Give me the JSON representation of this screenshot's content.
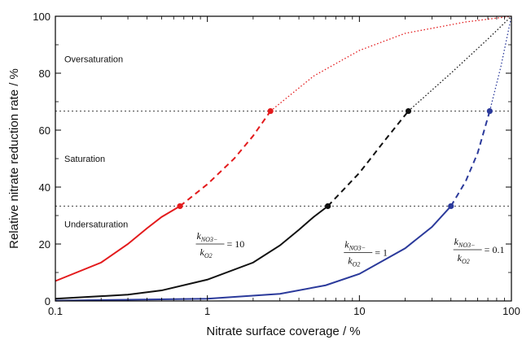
{
  "chart_data": {
    "type": "line",
    "x_scale": "log",
    "xlim": [
      0.1,
      100
    ],
    "ylim": [
      0,
      100
    ],
    "xlabel": "Nitrate surface coverage / %",
    "ylabel": "Relative nitrate reduction rate / %",
    "x_tick_labels": [
      "0.1",
      "1",
      "10",
      "100"
    ],
    "y_tick_labels": [
      "0",
      "20",
      "40",
      "60",
      "80",
      "100"
    ],
    "x_ticks": [
      0.1,
      1,
      10,
      100
    ],
    "y_ticks": [
      0,
      20,
      40,
      60,
      80,
      100
    ],
    "thresholds": [
      33.3,
      66.7
    ],
    "regions": [
      {
        "label": "Oversaturation",
        "y": 85
      },
      {
        "label": "Saturation",
        "y": 50
      },
      {
        "label": "Undersaturation",
        "y": 27
      }
    ],
    "series": [
      {
        "color": "#e31a1c",
        "solid": [
          [
            0.1,
            7
          ],
          [
            0.2,
            13.5
          ],
          [
            0.3,
            20
          ],
          [
            0.4,
            25.5
          ],
          [
            0.5,
            29.5
          ],
          [
            0.66,
            33.3
          ]
        ],
        "dashed": [
          [
            0.66,
            33.3
          ],
          [
            1,
            41
          ],
          [
            1.5,
            50
          ],
          [
            2,
            58
          ],
          [
            2.6,
            66.7
          ]
        ],
        "dotted": [
          [
            2.6,
            66.7
          ],
          [
            5,
            79
          ],
          [
            10,
            88
          ],
          [
            20,
            94
          ],
          [
            50,
            98
          ],
          [
            100,
            100
          ]
        ],
        "points": [
          [
            0.66,
            33.3
          ],
          [
            2.6,
            66.7
          ]
        ],
        "label": {
          "k_num": "k",
          "sub_num": "NO3−",
          "k_den": "k",
          "sub_den": "O2",
          "value": "10",
          "at": [
            0.85,
            20
          ]
        }
      },
      {
        "color": "#111111",
        "solid": [
          [
            0.1,
            0.8
          ],
          [
            0.3,
            2.2
          ],
          [
            0.5,
            3.7
          ],
          [
            1,
            7.5
          ],
          [
            2,
            13.5
          ],
          [
            3,
            19.5
          ],
          [
            4,
            25
          ],
          [
            5,
            29.5
          ],
          [
            6.2,
            33.3
          ]
        ],
        "dashed": [
          [
            6.2,
            33.3
          ],
          [
            10,
            45
          ],
          [
            15,
            57
          ],
          [
            21,
            66.7
          ]
        ],
        "dotted": [
          [
            21,
            66.7
          ],
          [
            40,
            80
          ],
          [
            70,
            92
          ],
          [
            100,
            100
          ]
        ],
        "points": [
          [
            6.2,
            33.3
          ],
          [
            21,
            66.7
          ]
        ],
        "label": {
          "k_num": "k",
          "sub_num": "NO3−",
          "k_den": "k",
          "sub_den": "O2",
          "value": "1",
          "at": [
            8,
            17
          ]
        }
      },
      {
        "color": "#2b3a9b",
        "solid": [
          [
            0.1,
            0.1
          ],
          [
            1,
            0.8
          ],
          [
            3,
            2.5
          ],
          [
            6,
            5.5
          ],
          [
            10,
            9.5
          ],
          [
            20,
            18.5
          ],
          [
            30,
            26
          ],
          [
            40,
            33.3
          ]
        ],
        "dashed": [
          [
            40,
            33.3
          ],
          [
            50,
            42
          ],
          [
            60,
            52
          ],
          [
            72,
            66.7
          ]
        ],
        "dotted": [
          [
            72,
            66.7
          ],
          [
            85,
            82
          ],
          [
            100,
            100
          ]
        ],
        "points": [
          [
            40,
            33.3
          ],
          [
            72,
            66.7
          ]
        ],
        "label": {
          "k_num": "k",
          "sub_num": "NO3−",
          "k_den": "k",
          "sub_den": "O2",
          "value": "0.1",
          "at": [
            42,
            18
          ]
        }
      }
    ]
  }
}
